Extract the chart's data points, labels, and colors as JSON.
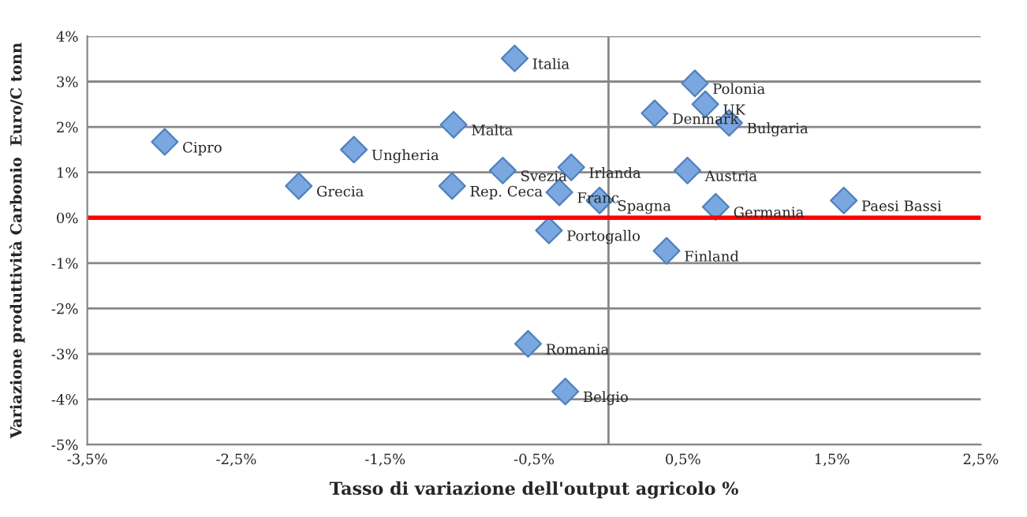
{
  "chart_data": {
    "type": "scatter",
    "xlabel": "Tasso di variazione dell'output agricolo %",
    "ylabel": "Variazione produttività Carbonio  Euro/C tonn",
    "series": [
      {
        "color": "#7ba7e0",
        "x": [
          -0.63,
          -2.98,
          -1.71,
          -1.04,
          -2.08,
          -1.05,
          -0.71,
          -0.25,
          -0.33,
          -0.06,
          -0.4,
          0.58,
          0.65,
          0.31,
          0.81,
          0.53,
          0.72,
          1.58,
          0.39,
          -0.54,
          -0.29
        ],
        "values": [
          3.51,
          1.67,
          1.5,
          2.05,
          0.7,
          0.7,
          1.04,
          1.11,
          0.56,
          0.38,
          -0.28,
          2.96,
          2.5,
          2.3,
          2.09,
          1.04,
          0.24,
          0.38,
          -0.73,
          -2.78,
          -3.83
        ]
      }
    ],
    "annotations": [
      {
        "text": "Italia",
        "x": -0.63,
        "y": 3.51
      },
      {
        "text": "Cipro",
        "x": -2.98,
        "y": 1.67
      },
      {
        "text": "Ungheria",
        "x": -1.71,
        "y": 1.5
      },
      {
        "text": "Malta",
        "x": -1.04,
        "y": 2.05
      },
      {
        "text": "Grecia",
        "x": -2.08,
        "y": 0.7
      },
      {
        "text": "Rep. Ceca",
        "x": -1.05,
        "y": 0.7
      },
      {
        "text": "Svezia",
        "x": -0.71,
        "y": 1.04
      },
      {
        "text": "Irlanda",
        "x": -0.25,
        "y": 1.11
      },
      {
        "text": "Franc",
        "x": -0.33,
        "y": 0.56
      },
      {
        "text": "Spagna",
        "x": -0.06,
        "y": 0.38
      },
      {
        "text": "Portogallo",
        "x": -0.4,
        "y": -0.28
      },
      {
        "text": "Polonia",
        "x": 0.58,
        "y": 2.96
      },
      {
        "text": "UK",
        "x": 0.65,
        "y": 2.5
      },
      {
        "text": "Denmark",
        "x": 0.31,
        "y": 2.3
      },
      {
        "text": "Bulgaria",
        "x": 0.81,
        "y": 2.09
      },
      {
        "text": "Austria",
        "x": 0.53,
        "y": 1.04
      },
      {
        "text": "Germania",
        "x": 0.72,
        "y": 0.24
      },
      {
        "text": "Paesi Bassi",
        "x": 1.58,
        "y": 0.38
      },
      {
        "text": "Finland",
        "x": 0.39,
        "y": -0.73
      },
      {
        "text": "Romania",
        "x": -0.54,
        "y": -2.78
      },
      {
        "text": "Belgio",
        "x": -0.29,
        "y": -3.83
      }
    ],
    "xlim": [
      -3.5,
      2.5
    ],
    "xticks": [
      {
        "value": -3.5,
        "label": "-3,5%"
      },
      {
        "value": -2.5,
        "label": "-2,5%"
      },
      {
        "value": -1.5,
        "label": "-1,5%"
      },
      {
        "value": -0.5,
        "label": "-0,5%"
      },
      {
        "value": 0.5,
        "label": "0,5%"
      },
      {
        "value": 1.5,
        "label": "1,5%"
      },
      {
        "value": 2.5,
        "label": "2,5%"
      }
    ],
    "ylim": [
      -5,
      4
    ],
    "yticks": [
      {
        "value": -5,
        "label": "-5%"
      },
      {
        "value": -4,
        "label": "-4%"
      },
      {
        "value": -3,
        "label": "-3%"
      },
      {
        "value": -2,
        "label": "-2%"
      },
      {
        "value": -1,
        "label": "-1%"
      },
      {
        "value": 0,
        "label": "0%"
      },
      {
        "value": 1,
        "label": "1%"
      },
      {
        "value": 2,
        "label": "2%"
      },
      {
        "value": 3,
        "label": "3%"
      },
      {
        "value": 4,
        "label": "4%"
      }
    ],
    "ref_lines": [
      {
        "axis": "y",
        "value": 0,
        "color": "#ff0000"
      },
      {
        "axis": "x",
        "value": 0,
        "color": "#888888"
      }
    ],
    "grid": "y",
    "marker": "diamond",
    "legend": false
  }
}
